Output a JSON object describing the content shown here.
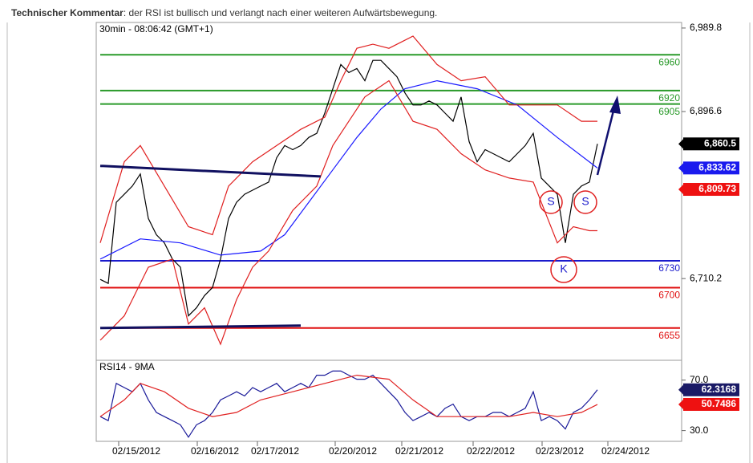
{
  "header": {
    "label": "Technischer Kommentar",
    "text": ": der RSI ist bullisch und verlangt nach einer weiteren Aufwärtsbewegung."
  },
  "chart_data": [
    {
      "type": "line",
      "title": "30min - 08:06:42 (GMT+1)",
      "xlim": [
        -0.5,
        72.5
      ],
      "ylim": [
        6619,
        6996
      ],
      "yticks": [
        {
          "value": 6989.8,
          "label": "6,989.8"
        },
        {
          "value": 6896.6,
          "label": "6,896.6"
        },
        {
          "value": 6710.2,
          "label": "6,710.2"
        }
      ],
      "series": [
        {
          "color": "#000000",
          "x": [
            0,
            1,
            2,
            3,
            4,
            5,
            6,
            7,
            8,
            9,
            10,
            11,
            12,
            13,
            14,
            15,
            16,
            17,
            18,
            19,
            20,
            21,
            22,
            23,
            24,
            25,
            26,
            27,
            28,
            29,
            30,
            31,
            32,
            33,
            34,
            35,
            36,
            37,
            38,
            39,
            40,
            41,
            42,
            43,
            44,
            45,
            46,
            47,
            48,
            49,
            50,
            51,
            52,
            53,
            54,
            55,
            56,
            57,
            58,
            59,
            60,
            61,
            62
          ],
          "values": [
            6709.3,
            6704.8,
            6795.3,
            6804.3,
            6813.4,
            6826.9,
            6777.2,
            6759.1,
            6750.0,
            6731.9,
            6722.9,
            6668.6,
            6677.6,
            6691.2,
            6700.2,
            6731.9,
            6777.2,
            6795.3,
            6804.3,
            6808.8,
            6813.4,
            6817.9,
            6845.0,
            6858.6,
            6854.1,
            6858.6,
            6867.7,
            6872.2,
            6894.8,
            6921.9,
            6949.1,
            6940.1,
            6944.6,
            6931.0,
            6953.7,
            6953.7,
            6944.6,
            6935.5,
            6917.4,
            6903.9,
            6903.9,
            6908.4,
            6903.9,
            6894.8,
            6885.8,
            6912.9,
            6863.1,
            6840.5,
            6854.1,
            6849.6,
            6845.0,
            6840.5,
            6849.6,
            6858.6,
            6872.2,
            6822.4,
            6813.4,
            6804.3,
            6750.0,
            6804.3,
            6813.4,
            6817.9,
            6860.5
          ]
        },
        {
          "color": "#1a1aff",
          "x": [
            0,
            5,
            10,
            15,
            20,
            23,
            26,
            29,
            32,
            35,
            38,
            42,
            47,
            52,
            57,
            62
          ],
          "values": [
            6731.9,
            6754.5,
            6750.0,
            6736.4,
            6740.9,
            6759.1,
            6795.3,
            6831.5,
            6867.7,
            6899.4,
            6922.0,
            6931.0,
            6922.0,
            6903.9,
            6867.7,
            6833.6
          ]
        },
        {
          "color": "#e02020",
          "x": [
            0,
            3,
            5,
            8,
            11,
            14,
            16,
            19,
            22,
            25,
            28,
            30,
            32,
            34,
            36,
            39,
            42,
            45,
            48,
            51,
            54,
            57,
            60,
            62
          ],
          "values": [
            6750.0,
            6840.5,
            6858.6,
            6813.4,
            6768.1,
            6759.1,
            6813.4,
            6840.5,
            6858.6,
            6876.7,
            6890.3,
            6931.0,
            6967.2,
            6971.7,
            6967.2,
            6980.8,
            6949.1,
            6931.0,
            6935.5,
            6903.9,
            6903.9,
            6903.9,
            6885.8,
            6885.8
          ]
        },
        {
          "color": "#e02020",
          "x": [
            0,
            3,
            6,
            9,
            11,
            13,
            15,
            17,
            19,
            21,
            24,
            27,
            29,
            31,
            33,
            36,
            39,
            42,
            45,
            48,
            51,
            54,
            57,
            59,
            61,
            62
          ],
          "values": [
            6641.4,
            6668.6,
            6722.9,
            6731.9,
            6659.5,
            6677.6,
            6636.9,
            6686.7,
            6722.9,
            6741.0,
            6786.2,
            6813.4,
            6858.6,
            6885.8,
            6912.9,
            6931.0,
            6885.8,
            6876.7,
            6849.6,
            6831.5,
            6822.4,
            6817.9,
            6750.0,
            6768.1,
            6763.6,
            6763.6
          ]
        },
        {
          "color": "#101060",
          "width": 3,
          "x": [
            0,
            27.5
          ],
          "values": [
            6836.0,
            6824.2
          ]
        },
        {
          "color": "#101060",
          "width": 3,
          "x": [
            0,
            25
          ],
          "values": [
            6655.0,
            6657.7
          ]
        }
      ],
      "levels": [
        {
          "value": 6960,
          "color": "#2a9a2a"
        },
        {
          "value": 6920,
          "color": "#2a9a2a"
        },
        {
          "value": 6905,
          "color": "#2a9a2a"
        },
        {
          "value": 6730,
          "color": "#1a1acc"
        },
        {
          "value": 6700,
          "color": "#e01010"
        },
        {
          "value": 6655,
          "color": "#e01010"
        }
      ],
      "last_labels": [
        {
          "value": 6860.5,
          "label": "6,860.5",
          "color": "#000000"
        },
        {
          "value": 6833.62,
          "label": "6,833.62",
          "color": "#1a1aee"
        },
        {
          "value": 6809.73,
          "label": "6,809.73",
          "color": "#ee1111"
        }
      ],
      "annotations": [
        "S",
        "S",
        "K"
      ]
    },
    {
      "type": "line",
      "title": "RSI14 - 9MA",
      "xlim": [
        -0.5,
        72.5
      ],
      "ylim": [
        21.5,
        85.7
      ],
      "yticks": [
        {
          "value": 70,
          "label": "70.0"
        },
        {
          "value": 30,
          "label": "30.0"
        }
      ],
      "xticks": [
        {
          "value": 4.5,
          "label": "02/15/2012"
        },
        {
          "value": 14.3,
          "label": "02/16/2012"
        },
        {
          "value": 21.8,
          "label": "02/17/2012"
        },
        {
          "value": 31.5,
          "label": "02/20/2012"
        },
        {
          "value": 39.8,
          "label": "02/21/2012"
        },
        {
          "value": 48.7,
          "label": "02/22/2012"
        },
        {
          "value": 57.3,
          "label": "02/23/2012"
        },
        {
          "value": 65.5,
          "label": "02/24/2012"
        }
      ],
      "series": [
        {
          "color": "#1a1a99",
          "x": [
            0,
            1,
            2,
            3,
            4,
            5,
            6,
            7,
            8,
            9,
            10,
            11,
            12,
            13,
            14,
            15,
            16,
            17,
            18,
            19,
            20,
            21,
            22,
            23,
            24,
            25,
            26,
            27,
            28,
            29,
            30,
            31,
            32,
            33,
            34,
            35,
            36,
            37,
            38,
            39,
            40,
            41,
            42,
            43,
            44,
            45,
            46,
            47,
            48,
            49,
            50,
            51,
            52,
            53,
            54,
            55,
            56,
            57,
            58,
            59,
            60,
            61,
            62
          ],
          "values": [
            41.1,
            37.9,
            67.4,
            64.1,
            60.8,
            67.4,
            54.3,
            44.4,
            41.1,
            37.9,
            34.6,
            24.8,
            34.6,
            37.9,
            44.4,
            54.3,
            57.5,
            60.8,
            57.5,
            64.1,
            60.8,
            64.1,
            67.4,
            60.8,
            64.1,
            67.4,
            64.1,
            73.9,
            73.9,
            77.2,
            77.2,
            73.9,
            70.7,
            70.7,
            73.9,
            67.4,
            60.8,
            54.3,
            44.4,
            37.9,
            41.1,
            44.4,
            41.1,
            47.7,
            51.0,
            41.1,
            37.9,
            41.1,
            41.1,
            44.4,
            44.4,
            41.1,
            44.4,
            47.7,
            60.8,
            37.9,
            41.1,
            37.9,
            31.3,
            44.4,
            47.7,
            54.3,
            62.3
          ]
        },
        {
          "color": "#e02020",
          "x": [
            0,
            3,
            5,
            8,
            11,
            14,
            17,
            20,
            24,
            28,
            32,
            36,
            39,
            42,
            45,
            48,
            51,
            54,
            57,
            60,
            62
          ],
          "values": [
            41.1,
            54.3,
            67.4,
            60.8,
            47.7,
            41.1,
            44.4,
            54.3,
            60.8,
            67.4,
            73.9,
            70.7,
            54.3,
            41.1,
            41.1,
            41.1,
            41.1,
            44.4,
            41.1,
            44.4,
            50.7
          ]
        }
      ],
      "last_labels": [
        {
          "value": 62.3168,
          "label": "62.3168",
          "color": "#1a1a66"
        },
        {
          "value": 50.7486,
          "label": "50.7486",
          "color": "#ee1111"
        }
      ]
    }
  ]
}
